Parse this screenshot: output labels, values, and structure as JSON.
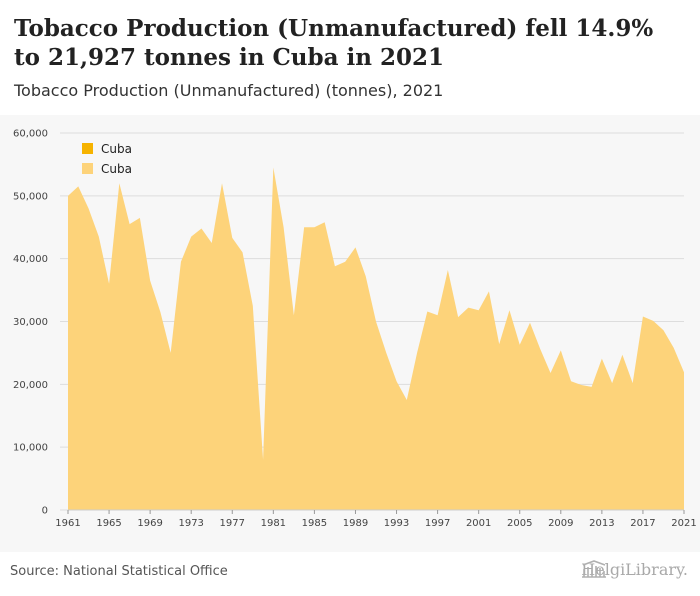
{
  "title": "Tobacco Production (Unmanufactured) fell 14.9% to 21,927 tonnes in Cuba in 2021",
  "subtitle": "Tobacco Production (Unmanufactured) (tonnes), 2021",
  "source": "Source: National Statistical Office",
  "brand": "HelgiLibrary.",
  "colors": {
    "area": "#fdd37a",
    "legend_dark": "#f6b300",
    "legend_light": "#fdd37a",
    "grid": "#dddddd"
  },
  "chart_data": {
    "type": "area",
    "title": "Tobacco Production (Unmanufactured) (tonnes), 2021",
    "xlabel": "",
    "ylabel": "",
    "ylim": [
      0,
      60000
    ],
    "yticks": [
      0,
      10000,
      20000,
      30000,
      40000,
      50000,
      60000
    ],
    "ytick_labels": [
      "0",
      "10,000",
      "20,000",
      "30,000",
      "40,000",
      "50,000",
      "60,000"
    ],
    "xticks": [
      1961,
      1965,
      1969,
      1973,
      1977,
      1981,
      1985,
      1989,
      1993,
      1997,
      2001,
      2005,
      2009,
      2013,
      2017,
      2021
    ],
    "legend": {
      "position": "top-left",
      "entries": [
        "Cuba",
        "Cuba"
      ]
    },
    "grid": "horizontal",
    "x": [
      1961,
      1962,
      1963,
      1964,
      1965,
      1966,
      1967,
      1968,
      1969,
      1970,
      1971,
      1972,
      1973,
      1974,
      1975,
      1976,
      1977,
      1978,
      1979,
      1980,
      1981,
      1982,
      1983,
      1984,
      1985,
      1986,
      1987,
      1988,
      1989,
      1990,
      1991,
      1992,
      1993,
      1994,
      1995,
      1996,
      1997,
      1998,
      1999,
      2000,
      2001,
      2002,
      2003,
      2004,
      2005,
      2006,
      2007,
      2008,
      2009,
      2010,
      2011,
      2012,
      2013,
      2014,
      2015,
      2016,
      2017,
      2018,
      2019,
      2020,
      2021
    ],
    "series": [
      {
        "name": "Cuba",
        "values": [
          50000,
          51500,
          48000,
          43500,
          36000,
          52000,
          45500,
          46500,
          36500,
          31500,
          25000,
          39500,
          43500,
          44800,
          42500,
          52000,
          43300,
          41000,
          32500,
          8000,
          54500,
          45000,
          31000,
          45000,
          45000,
          45800,
          38800,
          39500,
          41800,
          37200,
          30000,
          25000,
          20500,
          17500,
          25000,
          31600,
          31000,
          38200,
          30700,
          32200,
          31800,
          34800,
          26400,
          31800,
          26300,
          29800,
          25600,
          21800,
          25400,
          20500,
          19900,
          19600,
          24100,
          20200,
          24700,
          20200,
          30800,
          30100,
          28600,
          25800,
          21927
        ]
      }
    ]
  }
}
